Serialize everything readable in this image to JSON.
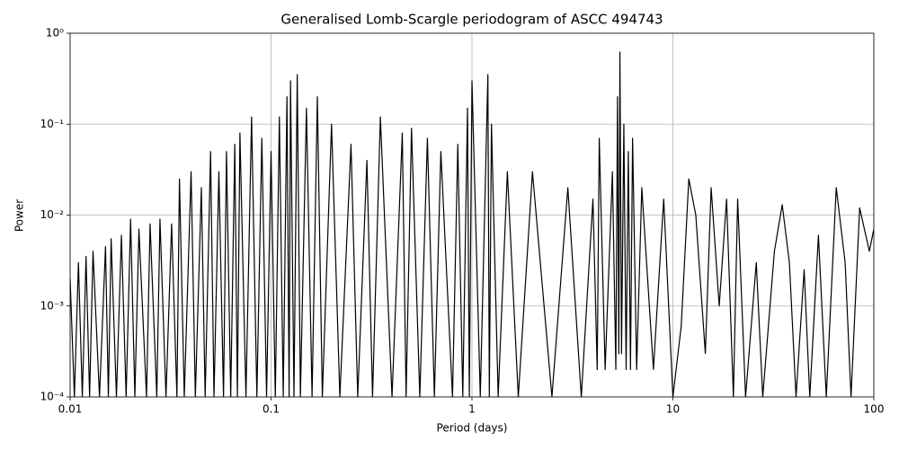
{
  "chart_data": {
    "type": "line",
    "title": "Generalised Lomb-Scargle periodogram of ASCC 494743",
    "x_label": "Period (days)",
    "y_label": "Power",
    "x_scale": "log",
    "y_scale": "log",
    "grid": true,
    "xlim": [
      0.01,
      100
    ],
    "xticks": [
      0.01,
      0.1,
      1,
      10,
      100
    ],
    "ylim": [
      0.0001,
      1
    ],
    "yticks": [
      {
        "value": 0.0001,
        "label": "10⁻⁴"
      },
      {
        "value": 0.001,
        "label": "10⁻³"
      },
      {
        "value": 0.01,
        "label": "10⁻²"
      },
      {
        "value": 0.1,
        "label": "10⁻¹"
      },
      {
        "value": 1,
        "label": "10⁰"
      }
    ],
    "x": [
      0.01,
      0.0105,
      0.011,
      0.0115,
      0.012,
      0.0125,
      0.013,
      0.014,
      0.015,
      0.0155,
      0.016,
      0.017,
      0.018,
      0.019,
      0.02,
      0.021,
      0.022,
      0.024,
      0.025,
      0.027,
      0.028,
      0.03,
      0.032,
      0.034,
      0.035,
      0.037,
      0.04,
      0.042,
      0.045,
      0.047,
      0.05,
      0.052,
      0.055,
      0.058,
      0.06,
      0.063,
      0.066,
      0.068,
      0.07,
      0.075,
      0.08,
      0.085,
      0.09,
      0.095,
      0.1,
      0.105,
      0.11,
      0.115,
      0.12,
      0.123,
      0.125,
      0.13,
      0.135,
      0.14,
      0.15,
      0.16,
      0.17,
      0.18,
      0.2,
      0.22,
      0.25,
      0.27,
      0.3,
      0.32,
      0.35,
      0.4,
      0.45,
      0.47,
      0.5,
      0.55,
      0.6,
      0.65,
      0.7,
      0.8,
      0.85,
      0.9,
      0.95,
      0.97,
      1.0,
      1.1,
      1.2,
      1.22,
      1.25,
      1.35,
      1.5,
      1.7,
      2,
      2.5,
      3,
      3.5,
      4,
      4.2,
      4.3,
      4.6,
      5,
      5.2,
      5.3,
      5.38,
      5.45,
      5.55,
      5.7,
      5.85,
      6,
      6.15,
      6.3,
      6.6,
      7,
      8,
      9,
      10,
      11,
      12,
      13,
      14.5,
      15.5,
      17,
      18.5,
      20,
      21,
      23,
      26,
      28,
      32,
      35,
      38,
      41,
      45,
      48,
      53,
      58,
      65,
      72,
      77,
      85,
      95,
      100
    ],
    "series": [
      {
        "color": "#000000",
        "values": [
          0.002,
          0.0001,
          0.003,
          0.0001,
          0.0035,
          0.0001,
          0.004,
          0.0001,
          0.0045,
          0.0001,
          0.0055,
          0.0001,
          0.006,
          0.0001,
          0.009,
          0.0001,
          0.007,
          0.0001,
          0.008,
          0.0001,
          0.009,
          0.0001,
          0.008,
          0.0001,
          0.025,
          0.0001,
          0.03,
          0.0001,
          0.02,
          0.0001,
          0.05,
          0.0001,
          0.03,
          0.0001,
          0.05,
          0.0001,
          0.06,
          0.0001,
          0.08,
          0.0001,
          0.12,
          0.0001,
          0.07,
          0.0001,
          0.05,
          0.0001,
          0.12,
          0.0001,
          0.2,
          0.0001,
          0.3,
          0.0001,
          0.35,
          0.0001,
          0.15,
          0.0001,
          0.2,
          0.0001,
          0.1,
          0.0001,
          0.06,
          0.0001,
          0.04,
          0.0001,
          0.12,
          0.0001,
          0.08,
          0.0001,
          0.09,
          0.0001,
          0.07,
          0.0001,
          0.05,
          0.0001,
          0.06,
          0.0001,
          0.15,
          0.0001,
          0.3,
          0.0001,
          0.35,
          0.0001,
          0.1,
          0.0001,
          0.03,
          0.0001,
          0.03,
          0.0001,
          0.02,
          0.0001,
          0.015,
          0.0002,
          0.07,
          0.0002,
          0.03,
          0.0002,
          0.2,
          0.0003,
          0.62,
          0.0003,
          0.1,
          0.0002,
          0.05,
          0.0002,
          0.07,
          0.0002,
          0.02,
          0.0002,
          0.015,
          0.0001,
          0.0006,
          0.025,
          0.01,
          0.0003,
          0.02,
          0.001,
          0.015,
          0.0001,
          0.015,
          0.0001,
          0.003,
          0.0001,
          0.004,
          0.013,
          0.003,
          0.0001,
          0.0025,
          0.0001,
          0.006,
          0.0001,
          0.02,
          0.003,
          0.0001,
          0.012,
          0.004,
          0.007
        ]
      }
    ]
  }
}
